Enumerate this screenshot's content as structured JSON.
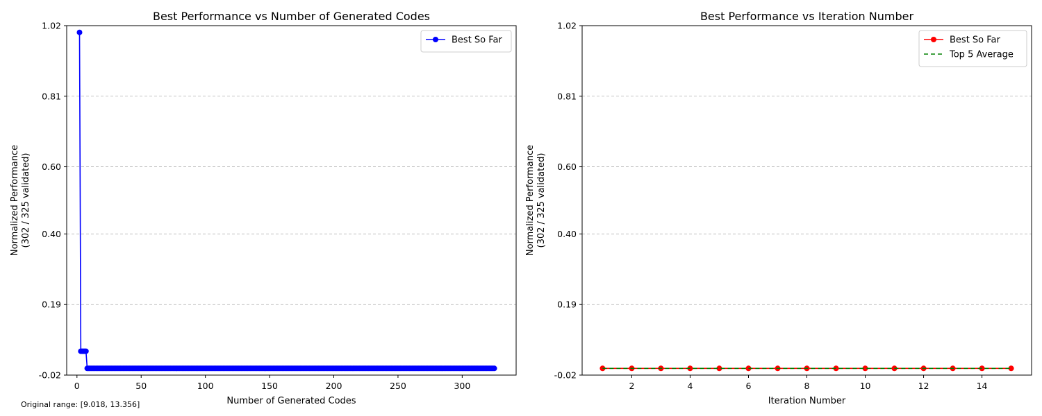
{
  "footnote": "Original range: [9.018, 13.356]",
  "chart_data": [
    {
      "type": "line",
      "title": "Best Performance vs Number of Generated Codes",
      "xlabel": "Number of Generated Codes",
      "ylabel": [
        "Normalized Performance",
        "(302 / 325 validated)"
      ],
      "xlim": [
        -8,
        342
      ],
      "ylim": [
        -0.02,
        1.02
      ],
      "xticks": [
        0,
        50,
        100,
        150,
        200,
        250,
        300
      ],
      "yticks": [
        -0.02,
        0.19,
        0.4,
        0.6,
        0.81,
        1.02
      ],
      "ytick_labels": [
        "-0.02",
        "0.19",
        "0.40",
        "0.60",
        "0.81",
        "1.02"
      ],
      "grid": "y-dashed",
      "legend_position": "top-right",
      "series": [
        {
          "name": "Best So Far",
          "color": "#0000ff",
          "line_style": "solid",
          "marker": "circle",
          "points": [
            [
              2,
              1.0
            ],
            [
              3,
              0.051
            ],
            [
              4,
              0.051
            ],
            [
              5,
              0.051
            ],
            [
              6,
              0.051
            ],
            [
              7,
              0.051
            ],
            [
              8,
              0.0
            ]
          ],
          "constant_tail": {
            "x_start": 9,
            "x_end": 325,
            "y": 0.0
          }
        }
      ]
    },
    {
      "type": "line",
      "title": "Best Performance vs Iteration Number",
      "xlabel": "Iteration Number",
      "ylabel": [
        "Normalized Performance",
        "(302 / 325 validated)"
      ],
      "xlim": [
        0.3,
        15.7
      ],
      "ylim": [
        -0.02,
        1.02
      ],
      "xticks": [
        2,
        4,
        6,
        8,
        10,
        12,
        14
      ],
      "yticks": [
        -0.02,
        0.19,
        0.4,
        0.6,
        0.81,
        1.02
      ],
      "ytick_labels": [
        "-0.02",
        "0.19",
        "0.40",
        "0.60",
        "0.81",
        "1.02"
      ],
      "grid": "y-dashed",
      "legend_position": "top-right",
      "series": [
        {
          "name": "Best So Far",
          "color": "#ff0000",
          "line_style": "solid",
          "marker": "circle",
          "x": [
            1,
            2,
            3,
            4,
            5,
            6,
            7,
            8,
            9,
            10,
            11,
            12,
            13,
            14,
            15
          ],
          "y": [
            0,
            0,
            0,
            0,
            0,
            0,
            0,
            0,
            0,
            0,
            0,
            0,
            0,
            0,
            0
          ]
        },
        {
          "name": "Top 5 Average",
          "color": "#008000",
          "line_style": "dashed",
          "marker": "none",
          "x": [
            1,
            2,
            3,
            4,
            5,
            6,
            7,
            8,
            9,
            10,
            11,
            12,
            13,
            14,
            15
          ],
          "y": [
            0,
            0,
            0,
            0,
            0,
            0,
            0,
            0,
            0,
            0,
            0,
            0,
            0,
            0,
            0
          ]
        }
      ]
    }
  ]
}
